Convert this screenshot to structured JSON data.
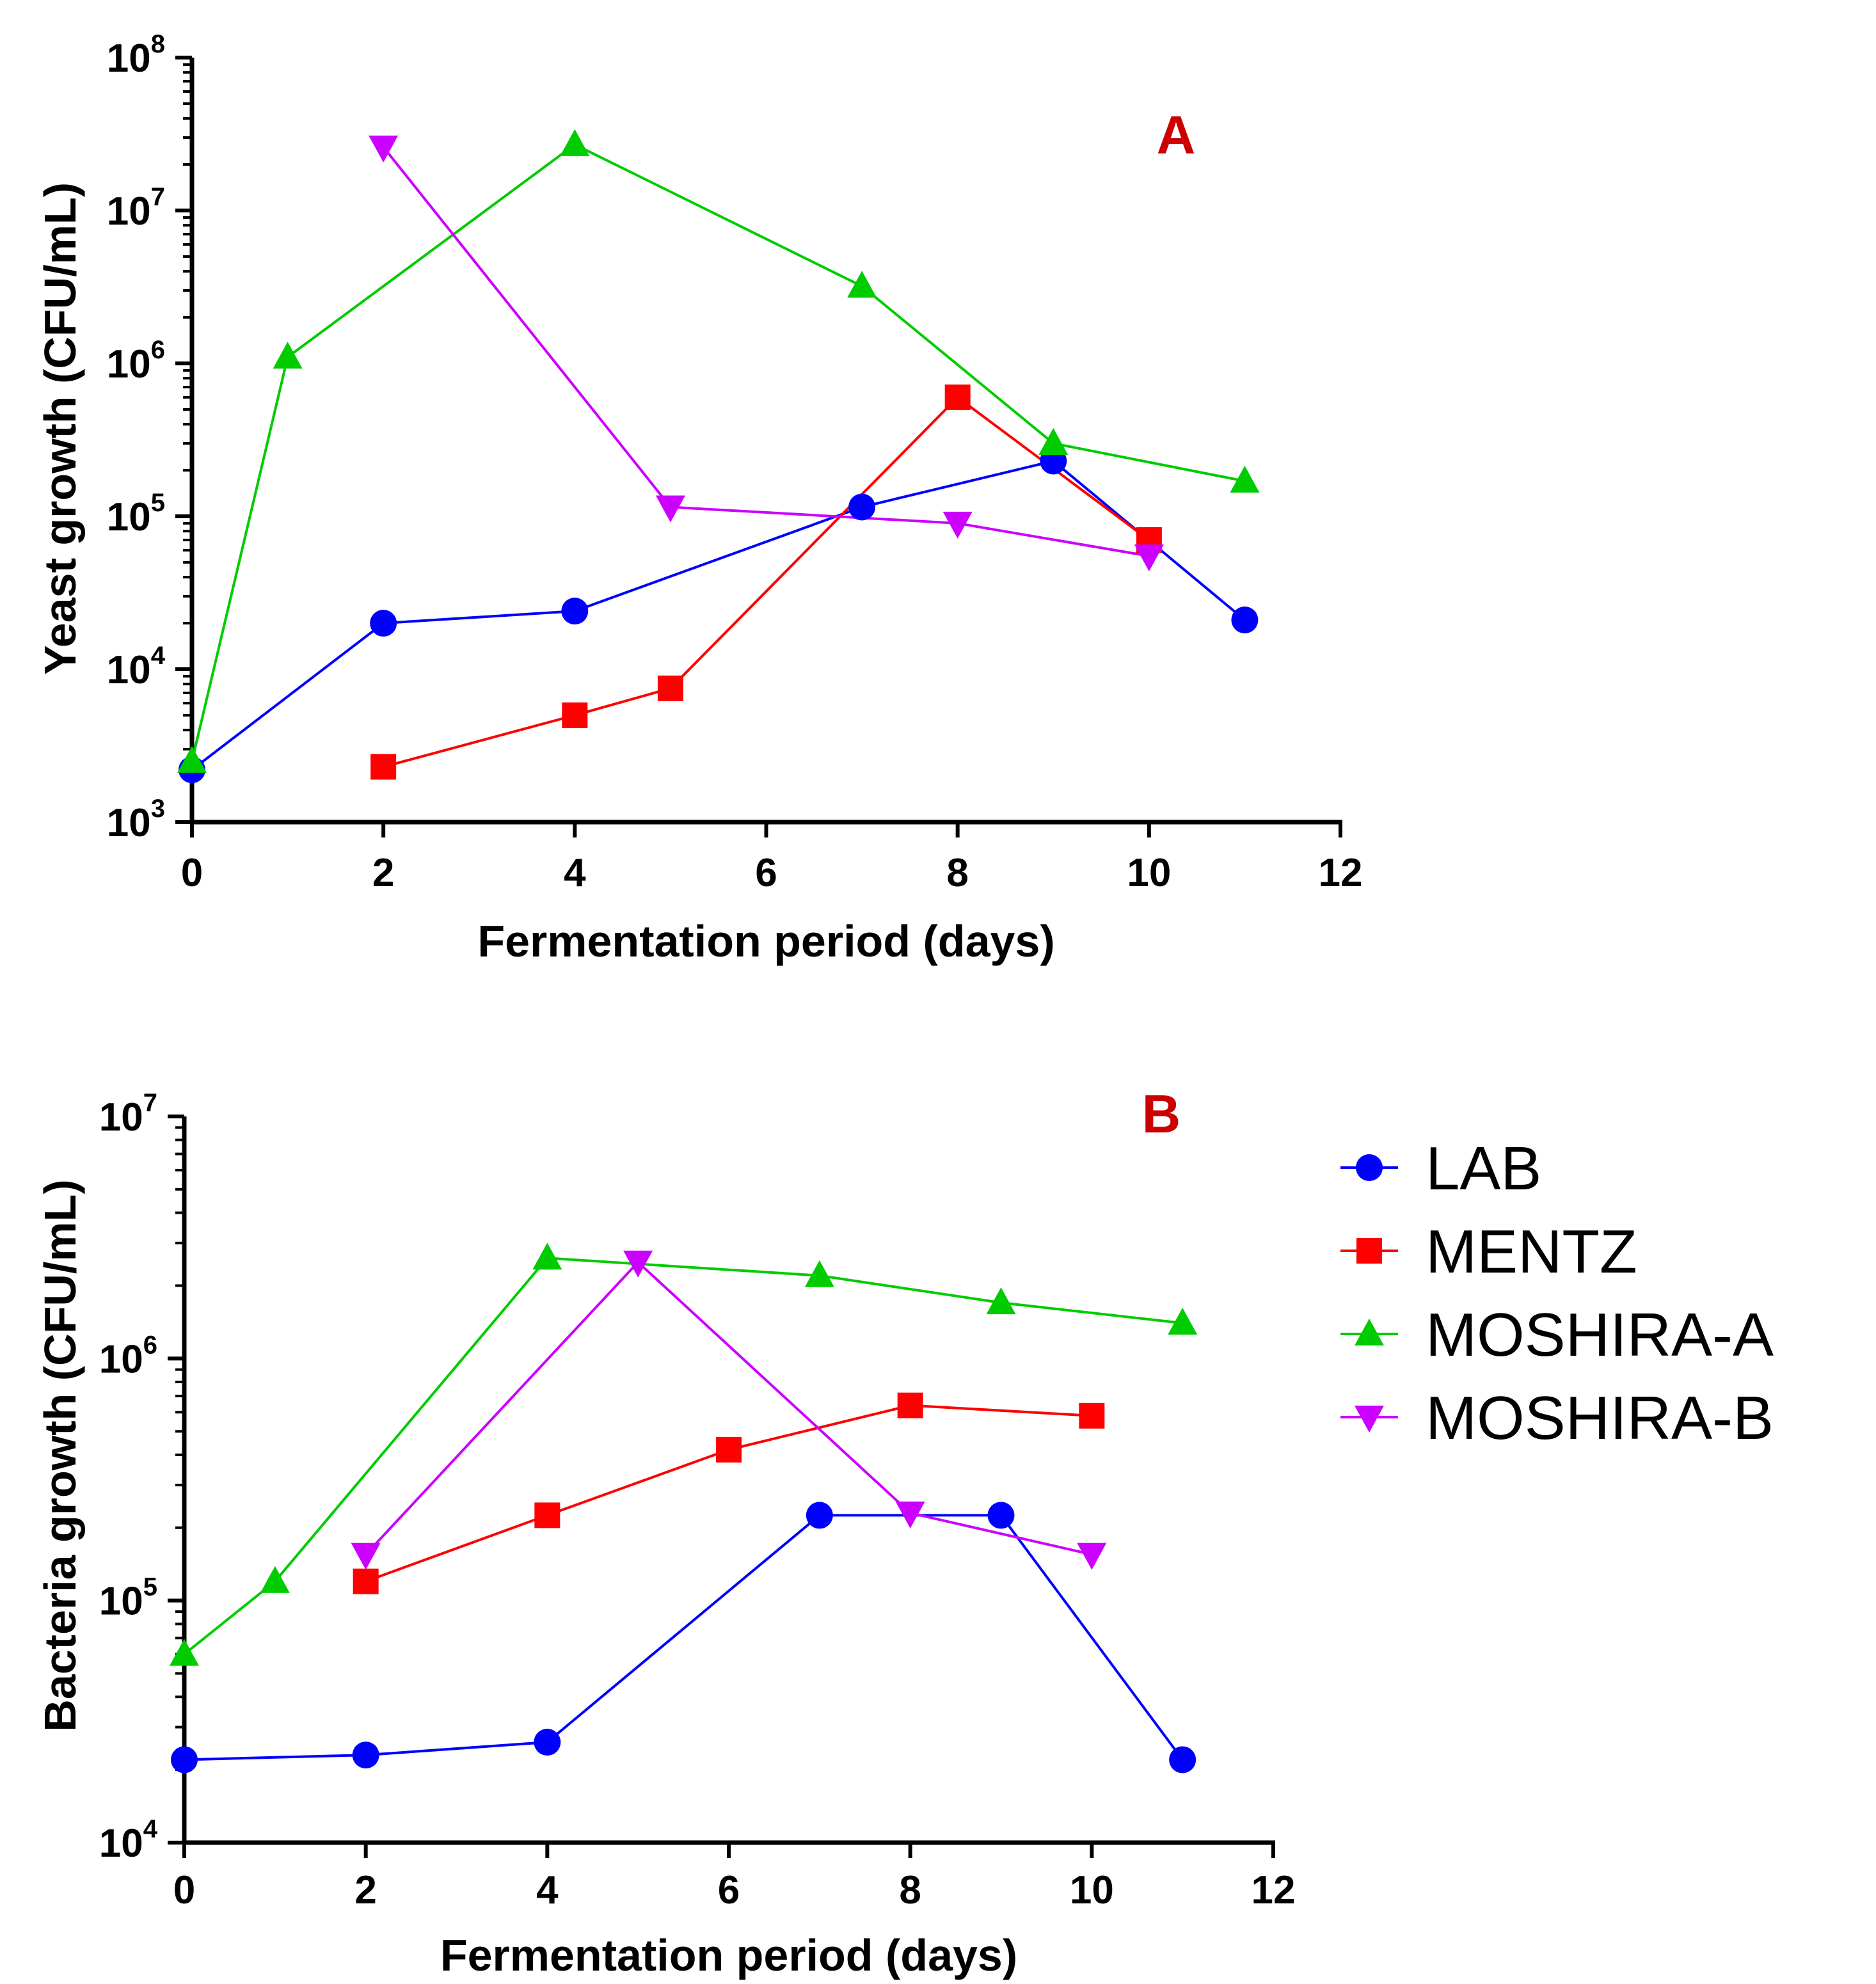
{
  "colors": {
    "LAB": "#0000ff",
    "MENTZ": "#ff0000",
    "MOSHIRA-A": "#00cc00",
    "MOSHIRA-B": "#cc00ff",
    "panel_label": "#cc0000"
  },
  "legend": {
    "items": [
      {
        "name": "LAB",
        "marker": "circle"
      },
      {
        "name": "MENTZ",
        "marker": "square"
      },
      {
        "name": "MOSHIRA-A",
        "marker": "triangle-up"
      },
      {
        "name": "MOSHIRA-B",
        "marker": "triangle-down"
      }
    ],
    "placement": "right of panel B"
  },
  "chart_data": [
    {
      "type": "line",
      "panel_label": "A",
      "xlabel": "Fermentation period (days)",
      "ylabel": "Yeast growth (CFU/mL)",
      "xlim": [
        0,
        12
      ],
      "ylim": [
        1000,
        100000000
      ],
      "yscale": "log",
      "xticks": [
        0,
        2,
        4,
        6,
        8,
        10,
        12
      ],
      "yticks": [
        {
          "base": "10",
          "exp": "3"
        },
        {
          "base": "10",
          "exp": "4"
        },
        {
          "base": "10",
          "exp": "5"
        },
        {
          "base": "10",
          "exp": "6"
        },
        {
          "base": "10",
          "exp": "7"
        },
        {
          "base": "10",
          "exp": "8"
        }
      ],
      "series": [
        {
          "name": "LAB",
          "x": [
            0,
            2,
            4,
            7,
            9,
            11
          ],
          "values": [
            2200,
            20000,
            24000,
            115000,
            230000,
            21000
          ]
        },
        {
          "name": "MENTZ",
          "x": [
            2,
            4,
            5,
            8,
            10
          ],
          "values": [
            2300,
            5000,
            7500,
            600000,
            70000
          ]
        },
        {
          "name": "MOSHIRA-A",
          "x": [
            0,
            1,
            4,
            7,
            9,
            11
          ],
          "values": [
            2500,
            1100000,
            27000000,
            3200000,
            300000,
            170000
          ]
        },
        {
          "name": "MOSHIRA-B",
          "x": [
            2,
            5,
            8,
            10
          ],
          "values": [
            26000000,
            115000,
            90000,
            55000
          ]
        }
      ]
    },
    {
      "type": "line",
      "panel_label": "B",
      "xlabel": "Fermentation period (days)",
      "ylabel": "Bacteria growth (CFU/mL)",
      "xlim": [
        0,
        12
      ],
      "ylim": [
        10000,
        10000000
      ],
      "yscale": "log",
      "xticks": [
        0,
        2,
        4,
        6,
        8,
        10,
        12
      ],
      "yticks": [
        {
          "base": "10",
          "exp": "4"
        },
        {
          "base": "10",
          "exp": "5"
        },
        {
          "base": "10",
          "exp": "6"
        },
        {
          "base": "10",
          "exp": "7"
        }
      ],
      "series": [
        {
          "name": "LAB",
          "x": [
            0,
            2,
            4,
            7,
            9,
            11
          ],
          "values": [
            22000,
            23000,
            26000,
            225000,
            225000,
            22000
          ]
        },
        {
          "name": "MENTZ",
          "x": [
            2,
            4,
            6,
            8,
            10
          ],
          "values": [
            120000,
            225000,
            420000,
            640000,
            580000
          ]
        },
        {
          "name": "MOSHIRA-A",
          "x": [
            0,
            1,
            4,
            7,
            9,
            11
          ],
          "values": [
            60000,
            120000,
            2600000,
            2200000,
            1700000,
            1400000
          ]
        },
        {
          "name": "MOSHIRA-B",
          "x": [
            2,
            5,
            8,
            10
          ],
          "values": [
            155000,
            2500000,
            230000,
            155000
          ]
        }
      ]
    }
  ]
}
